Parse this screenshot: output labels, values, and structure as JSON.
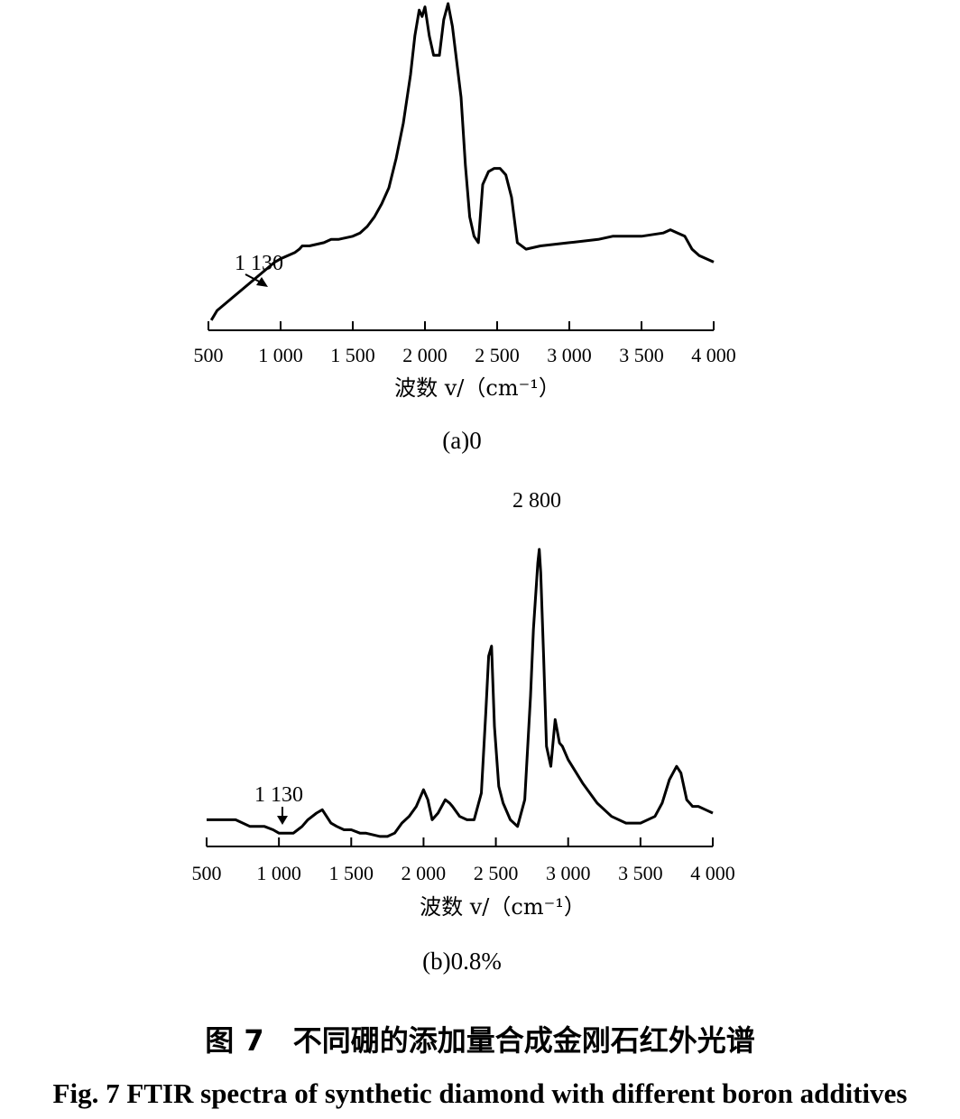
{
  "chart_data": [
    {
      "type": "line",
      "panel": "a",
      "caption": "(a)0",
      "xlabel": "波数 v/（cm⁻¹）",
      "ylabel": "",
      "xlim": [
        500,
        4000
      ],
      "x_ticks": [
        500,
        1000,
        1500,
        2000,
        2500,
        3000,
        3500,
        4000
      ],
      "x_tick_labels": [
        "500",
        "1 000",
        "1 500",
        "2 000",
        "2 500",
        "3 000",
        "3 500",
        "4 000"
      ],
      "ylim": [
        0,
        100
      ],
      "y_axis_visible": false,
      "grid": false,
      "annotations": [
        {
          "text": "1 130",
          "x": 1000,
          "arrow": true
        }
      ],
      "series": [
        {
          "x": [
            520,
            560,
            640,
            720,
            800,
            880,
            960,
            1000,
            1050,
            1100,
            1130,
            1150,
            1200,
            1300,
            1350,
            1400,
            1500,
            1550,
            1600,
            1650,
            1700,
            1750,
            1800,
            1850,
            1900,
            1930,
            1960,
            1980,
            2000,
            2030,
            2060,
            2100,
            2130,
            2160,
            2190,
            2220,
            2250,
            2280,
            2310,
            2340,
            2370,
            2400,
            2440,
            2480,
            2520,
            2560,
            2600,
            2640,
            2700,
            2800,
            3000,
            3200,
            3300,
            3500,
            3650,
            3700,
            3750,
            3800,
            3850,
            3900,
            4000
          ],
          "values": [
            2,
            5,
            8,
            11,
            14,
            17,
            20,
            21,
            22,
            23,
            24,
            25,
            25,
            26,
            27,
            27,
            28,
            29,
            31,
            34,
            38,
            43,
            52,
            63,
            78,
            90,
            98,
            96,
            99,
            90,
            84,
            84,
            95,
            100,
            93,
            82,
            71,
            50,
            34,
            28,
            26,
            44,
            48,
            49,
            49,
            47,
            40,
            26,
            24,
            25,
            26,
            27,
            28,
            28,
            29,
            30,
            29,
            28,
            24,
            22,
            20
          ]
        }
      ]
    },
    {
      "type": "line",
      "panel": "b",
      "caption": "(b)0.8%",
      "xlabel": "波数 v/（cm⁻¹）",
      "ylabel": "",
      "xlim": [
        500,
        4000
      ],
      "x_ticks": [
        500,
        1000,
        1500,
        2000,
        2500,
        3000,
        3500,
        4000
      ],
      "x_tick_labels": [
        "500",
        "1 000",
        "1 500",
        "2 000",
        "2 500",
        "3 000",
        "3 500",
        "4 000"
      ],
      "ylim": [
        0,
        100
      ],
      "y_axis_visible": false,
      "grid": false,
      "annotations": [
        {
          "text": "1 130",
          "x": 1130,
          "arrow": true
        },
        {
          "text": "2 800",
          "x": 2800,
          "arrow": false
        }
      ],
      "series": [
        {
          "x": [
            500,
            600,
            700,
            800,
            900,
            960,
            1000,
            1050,
            1100,
            1130,
            1160,
            1200,
            1260,
            1300,
            1360,
            1400,
            1450,
            1500,
            1560,
            1600,
            1700,
            1750,
            1800,
            1850,
            1900,
            1950,
            2000,
            2030,
            2060,
            2100,
            2150,
            2180,
            2200,
            2250,
            2300,
            2350,
            2400,
            2430,
            2450,
            2470,
            2490,
            2520,
            2550,
            2600,
            2650,
            2700,
            2740,
            2760,
            2790,
            2800,
            2810,
            2830,
            2850,
            2880,
            2910,
            2940,
            2960,
            3000,
            3100,
            3200,
            3300,
            3400,
            3500,
            3600,
            3650,
            3700,
            3750,
            3780,
            3820,
            3860,
            3900,
            3950,
            4000
          ],
          "values": [
            8,
            8,
            8,
            6,
            6,
            5,
            4,
            4,
            4,
            5,
            6,
            8,
            10,
            11,
            7,
            6,
            5,
            5,
            4,
            4,
            3,
            3,
            4,
            7,
            9,
            12,
            17,
            14,
            8,
            10,
            14,
            13,
            12,
            9,
            8,
            8,
            16,
            40,
            57,
            60,
            36,
            18,
            13,
            8,
            6,
            14,
            45,
            65,
            85,
            89,
            82,
            57,
            30,
            24,
            38,
            31,
            30,
            26,
            19,
            13,
            9,
            7,
            7,
            9,
            13,
            20,
            24,
            22,
            14,
            12,
            12,
            11,
            10
          ]
        }
      ]
    }
  ],
  "caption": {
    "chinese": "图 7　不同硼的添加量合成金刚石红外光谱",
    "english": "Fig. 7 FTIR spectra of synthetic diamond with different boron additives"
  }
}
